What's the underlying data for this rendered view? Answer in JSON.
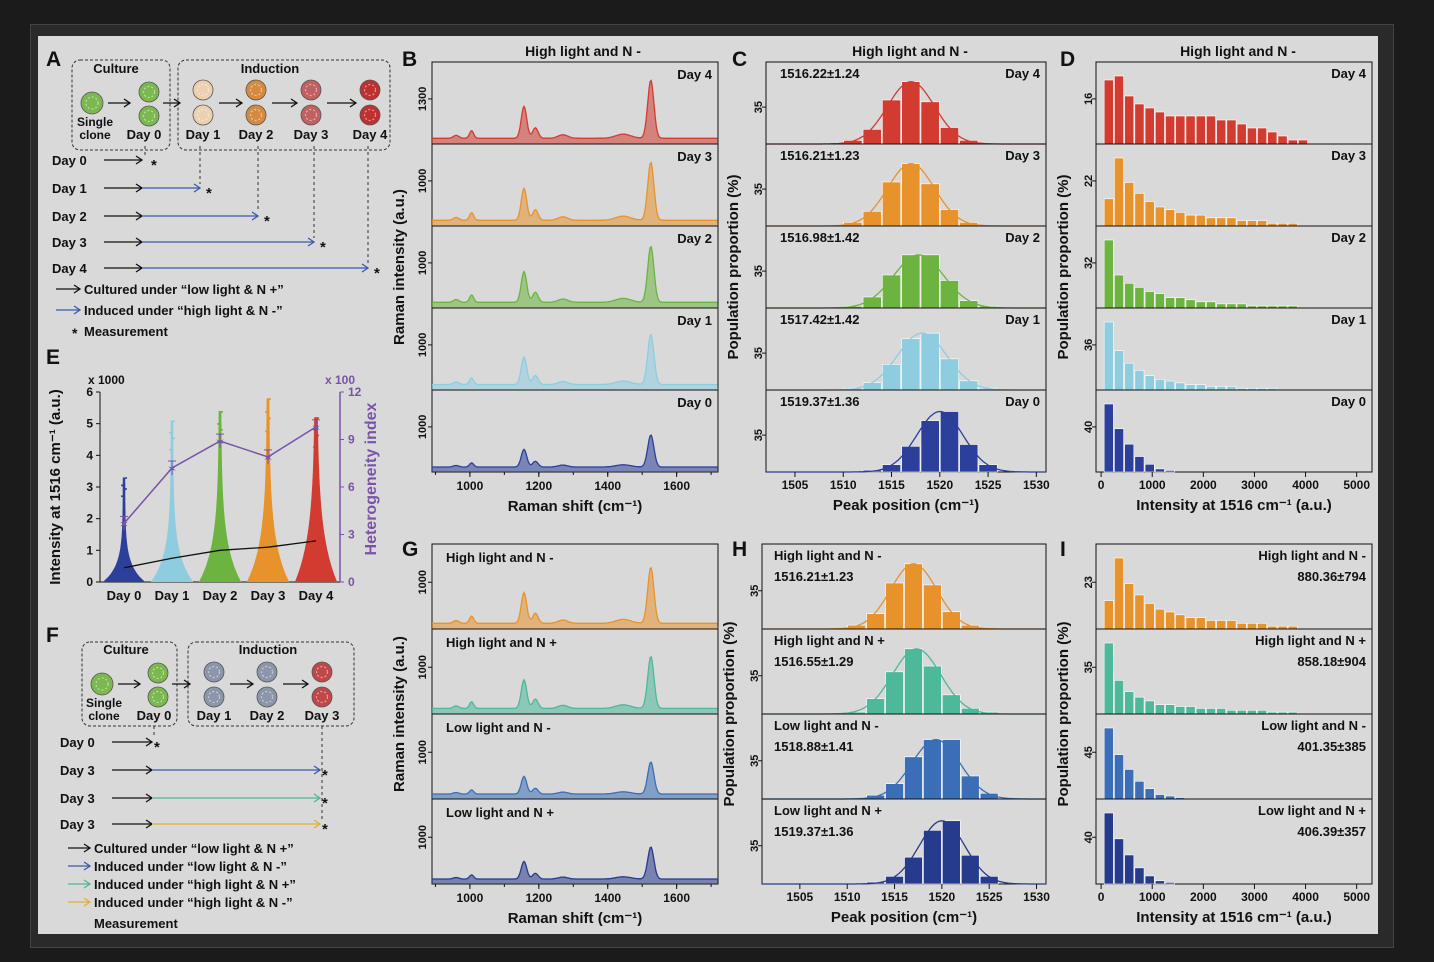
{
  "panel_letters": [
    "A",
    "B",
    "C",
    "D",
    "E",
    "F",
    "G",
    "H",
    "I"
  ],
  "header": "High light and N -",
  "panelA": {
    "culture": "Culture",
    "induction": "Induction",
    "single": "Single",
    "clone": "clone",
    "days": [
      "Day 0",
      "Day 1",
      "Day 2",
      "Day 3",
      "Day 4"
    ],
    "rows": [
      "Day 0",
      "Day 1",
      "Day 2",
      "Day 3",
      "Day 4"
    ],
    "legend": [
      "Cultured under “low light & N +”",
      "Induced under “high light & N -”",
      "Measurement"
    ]
  },
  "panelF": {
    "culture": "Culture",
    "induction": "Induction",
    "single": "Single",
    "clone": "clone",
    "days": [
      "Day 0",
      "Day 1",
      "Day 2",
      "Day 3"
    ],
    "rows": [
      "Day 0",
      "Day 3",
      "Day 3",
      "Day 3"
    ],
    "legend": [
      "Cultured under “low light & N +”",
      "Induced under “low light & N -”",
      "Induced under “high light & N +”",
      "Induced under “high light & N -”",
      "Measurement"
    ]
  },
  "colors": {
    "day4": "#d23b30",
    "day3": "#e8922c",
    "day2": "#6cb43f",
    "day1": "#8ecde0",
    "day0": "#2c3f9a",
    "teal": "#4db89a",
    "midblue": "#3a6fb8",
    "navy": "#263b8c",
    "purple": "#7a52a8",
    "black": "#222222",
    "blue": "#3b5ab0",
    "yellow": "#e0b030"
  },
  "chart_data": [
    {
      "type": "line",
      "panel": "B",
      "title": "High light and N -",
      "xlabel": "Raman shift (cm⁻¹)",
      "ylabel": "Raman intensity (a.u.)",
      "xlim": [
        890,
        1720
      ],
      "xticks": [
        1000,
        1200,
        1400,
        1600
      ],
      "series": [
        {
          "name": "Day 4",
          "ytick": "1300"
        },
        {
          "name": "Day 3",
          "ytick": "1000"
        },
        {
          "name": "Day 2",
          "ytick": "1000"
        },
        {
          "name": "Day 1",
          "ytick": "1000"
        },
        {
          "name": "Day 0",
          "ytick": "1000"
        }
      ]
    },
    {
      "type": "bar",
      "panel": "C",
      "title": "High light and N -",
      "xlabel": "Peak position (cm⁻¹)",
      "ylabel": "Population proportion (%)",
      "xlim": [
        1502,
        1531
      ],
      "xticks": [
        1505,
        1510,
        1515,
        1520,
        1525,
        1530
      ],
      "bin_starts": [
        1510,
        1512,
        1514,
        1516,
        1518,
        1520,
        1522,
        1524
      ],
      "series": [
        {
          "name": "Day 4",
          "stat": "1516.22±1.24",
          "ytick": "35",
          "values": [
            2,
            8,
            24,
            34,
            23,
            9,
            2,
            0
          ]
        },
        {
          "name": "Day 3",
          "stat": "1516.21±1.23",
          "ytick": "35",
          "values": [
            2,
            8,
            24,
            34,
            23,
            9,
            2,
            0
          ]
        },
        {
          "name": "Day 2",
          "stat": "1516.98±1.42",
          "ytick": "35",
          "values": [
            1,
            6,
            18,
            29,
            29,
            15,
            4,
            1
          ]
        },
        {
          "name": "Day 1",
          "stat": "1517.42±1.42",
          "ytick": "35",
          "values": [
            1,
            4,
            14,
            28,
            31,
            17,
            5,
            1
          ]
        },
        {
          "name": "Day 0",
          "stat": "1519.37±1.36",
          "ytick": "35",
          "values": [
            0,
            1,
            4,
            14,
            28,
            33,
            15,
            4
          ]
        }
      ]
    },
    {
      "type": "bar",
      "panel": "D",
      "title": "High light and N -",
      "xlabel": "Intensity at 1516 cm⁻¹ (a.u.)",
      "ylabel": "Population proportion (%)",
      "xlim": [
        -100,
        5300
      ],
      "xticks": [
        0,
        1000,
        2000,
        3000,
        4000,
        5000
      ],
      "series": [
        {
          "name": "Day 4",
          "ytick": "16",
          "values": [
            16,
            17,
            12,
            10,
            9,
            8,
            7,
            7,
            7,
            7,
            7,
            6,
            6,
            5,
            4,
            4,
            3,
            2,
            1,
            1
          ]
        },
        {
          "name": "Day 3",
          "ytick": "22",
          "values": [
            10,
            25,
            16,
            12,
            9,
            7,
            6,
            5,
            4,
            4,
            3,
            3,
            3,
            2,
            2,
            2,
            1,
            1,
            1
          ]
        },
        {
          "name": "Day 2",
          "ytick": "32",
          "values": [
            33,
            16,
            12,
            10,
            8,
            7,
            5,
            5,
            4,
            3,
            3,
            2,
            2,
            2,
            1,
            1,
            1,
            1,
            1
          ]
        },
        {
          "name": "Day 1",
          "ytick": "36",
          "values": [
            38,
            22,
            15,
            11,
            8,
            6,
            5,
            4,
            3,
            3,
            2,
            2,
            2,
            1,
            1,
            1,
            1
          ]
        },
        {
          "name": "Day 0",
          "ytick": "40",
          "values": [
            44,
            28,
            18,
            10,
            5,
            2,
            1
          ]
        }
      ]
    },
    {
      "type": "scatter",
      "panel": "E",
      "ylabel": "Intensity at 1516 cm⁻¹ (a.u.)",
      "y2label": "Heterogeneity index",
      "y_multiplier": "x 1000",
      "y2_multiplier": "x 100",
      "categories": [
        "Day 0",
        "Day 1",
        "Day 2",
        "Day 3",
        "Day 4"
      ],
      "ylim": [
        0,
        6
      ],
      "y2lim": [
        0,
        12
      ],
      "mean_intensity": [
        0.45,
        0.75,
        1.0,
        1.1,
        1.3
      ],
      "max_intensity": [
        3.3,
        5.1,
        5.4,
        5.8,
        5.2
      ],
      "heterogeneity": [
        3.7,
        7.2,
        8.9,
        7.9,
        9.8
      ]
    },
    {
      "type": "line",
      "panel": "G",
      "xlabel": "Raman shift (cm⁻¹)",
      "ylabel": "Raman intensity (a.u.)",
      "xlim": [
        890,
        1720
      ],
      "xticks": [
        1000,
        1200,
        1400,
        1600
      ],
      "series": [
        {
          "name": "High light and N -",
          "ytick": "1000"
        },
        {
          "name": "High light and N +",
          "ytick": "1000"
        },
        {
          "name": "Low light and N -",
          "ytick": "1000"
        },
        {
          "name": "Low light and N +",
          "ytick": "1000"
        }
      ]
    },
    {
      "type": "bar",
      "panel": "H",
      "xlabel": "Peak position (cm⁻¹)",
      "ylabel": "Population proportion (%)",
      "xlim": [
        1501,
        1531
      ],
      "xticks": [
        1505,
        1510,
        1515,
        1520,
        1525,
        1530
      ],
      "bin_starts": [
        1510,
        1512,
        1514,
        1516,
        1518,
        1520,
        1522,
        1524
      ],
      "series": [
        {
          "name": "High light and N -",
          "stat": "1516.21±1.23",
          "ytick": "35",
          "values": [
            2,
            8,
            24,
            34,
            23,
            9,
            2,
            0
          ]
        },
        {
          "name": "High light and N +",
          "stat": "1516.55±1.29",
          "ytick": "35",
          "values": [
            1,
            8,
            22,
            34,
            25,
            10,
            3,
            1
          ]
        },
        {
          "name": "Low light and N -",
          "stat": "1518.88±1.41",
          "ytick": "35",
          "values": [
            0,
            2,
            8,
            22,
            31,
            31,
            12,
            3
          ]
        },
        {
          "name": "Low light and N +",
          "stat": "1519.37±1.36",
          "ytick": "35",
          "values": [
            0,
            1,
            4,
            14,
            28,
            33,
            15,
            4
          ]
        }
      ]
    },
    {
      "type": "bar",
      "panel": "I",
      "xlabel": "Intensity at 1516 cm⁻¹ (a.u.)",
      "ylabel": "Population proportion (%)",
      "xlim": [
        -100,
        5300
      ],
      "xticks": [
        0,
        1000,
        2000,
        3000,
        4000,
        5000
      ],
      "series": [
        {
          "name": "High light and N -",
          "stat": "880.36±794",
          "ytick": "23",
          "values": [
            10,
            25,
            16,
            12,
            9,
            7,
            6,
            5,
            4,
            4,
            3,
            3,
            3,
            2,
            2,
            2,
            1,
            1,
            1
          ]
        },
        {
          "name": "High light and N +",
          "stat": "858.18±904",
          "ytick": "35",
          "values": [
            38,
            18,
            12,
            9,
            7,
            5,
            5,
            4,
            4,
            3,
            3,
            3,
            2,
            2,
            2,
            2,
            1,
            1,
            1
          ]
        },
        {
          "name": "Low light and N -",
          "stat": "401.35±385",
          "ytick": "45",
          "values": [
            48,
            30,
            20,
            12,
            7,
            3,
            2,
            1
          ]
        },
        {
          "name": "Low light and N +",
          "stat": "406.39±357",
          "ytick": "40",
          "values": [
            44,
            28,
            18,
            10,
            5,
            2,
            1
          ]
        }
      ]
    }
  ]
}
